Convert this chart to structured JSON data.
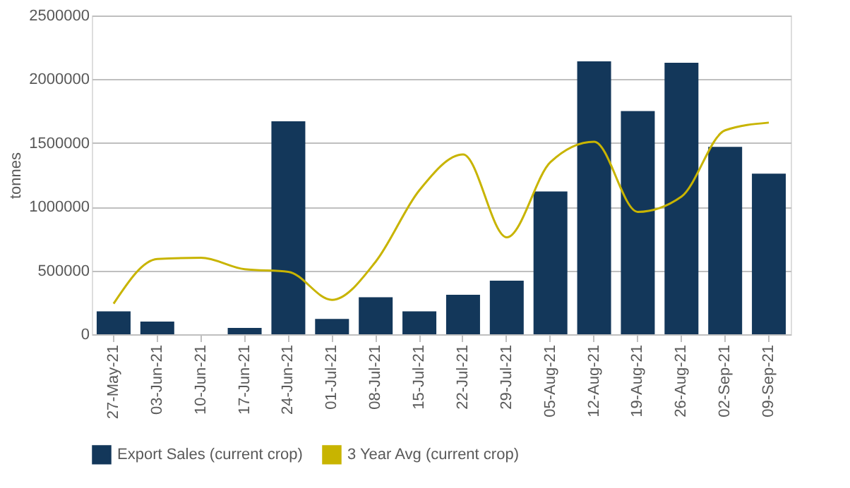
{
  "chart_data": {
    "type": "bar",
    "ylabel": "tonnes",
    "categories": [
      "27-May-21",
      "03-Jun-21",
      "10-Jun-21",
      "17-Jun-21",
      "24-Jun-21",
      "01-Jul-21",
      "08-Jul-21",
      "15-Jul-21",
      "22-Jul-21",
      "29-Jul-21",
      "05-Aug-21",
      "12-Aug-21",
      "19-Aug-21",
      "26-Aug-21",
      "02-Sep-21",
      "09-Sep-21"
    ],
    "series": [
      {
        "name": "Export Sales (current crop)",
        "color": "#13375a",
        "values": [
          180000,
          100000,
          0,
          50000,
          1670000,
          120000,
          290000,
          180000,
          310000,
          420000,
          1120000,
          2140000,
          1750000,
          2130000,
          1470000,
          1260000
        ]
      },
      {
        "name": "3 Year Avg (current crop)",
        "type": "line",
        "color": "#c8b400",
        "values": [
          240000,
          590000,
          600000,
          510000,
          490000,
          270000,
          570000,
          1130000,
          1410000,
          760000,
          1350000,
          1510000,
          960000,
          1080000,
          1600000,
          1660000
        ]
      }
    ],
    "ylim": [
      0,
      2500000
    ],
    "yticks": [
      0,
      500000,
      1000000,
      1500000,
      2000000,
      2500000
    ],
    "grid": "y",
    "legend": "bottom",
    "marker": "none",
    "line_style": "solid"
  }
}
